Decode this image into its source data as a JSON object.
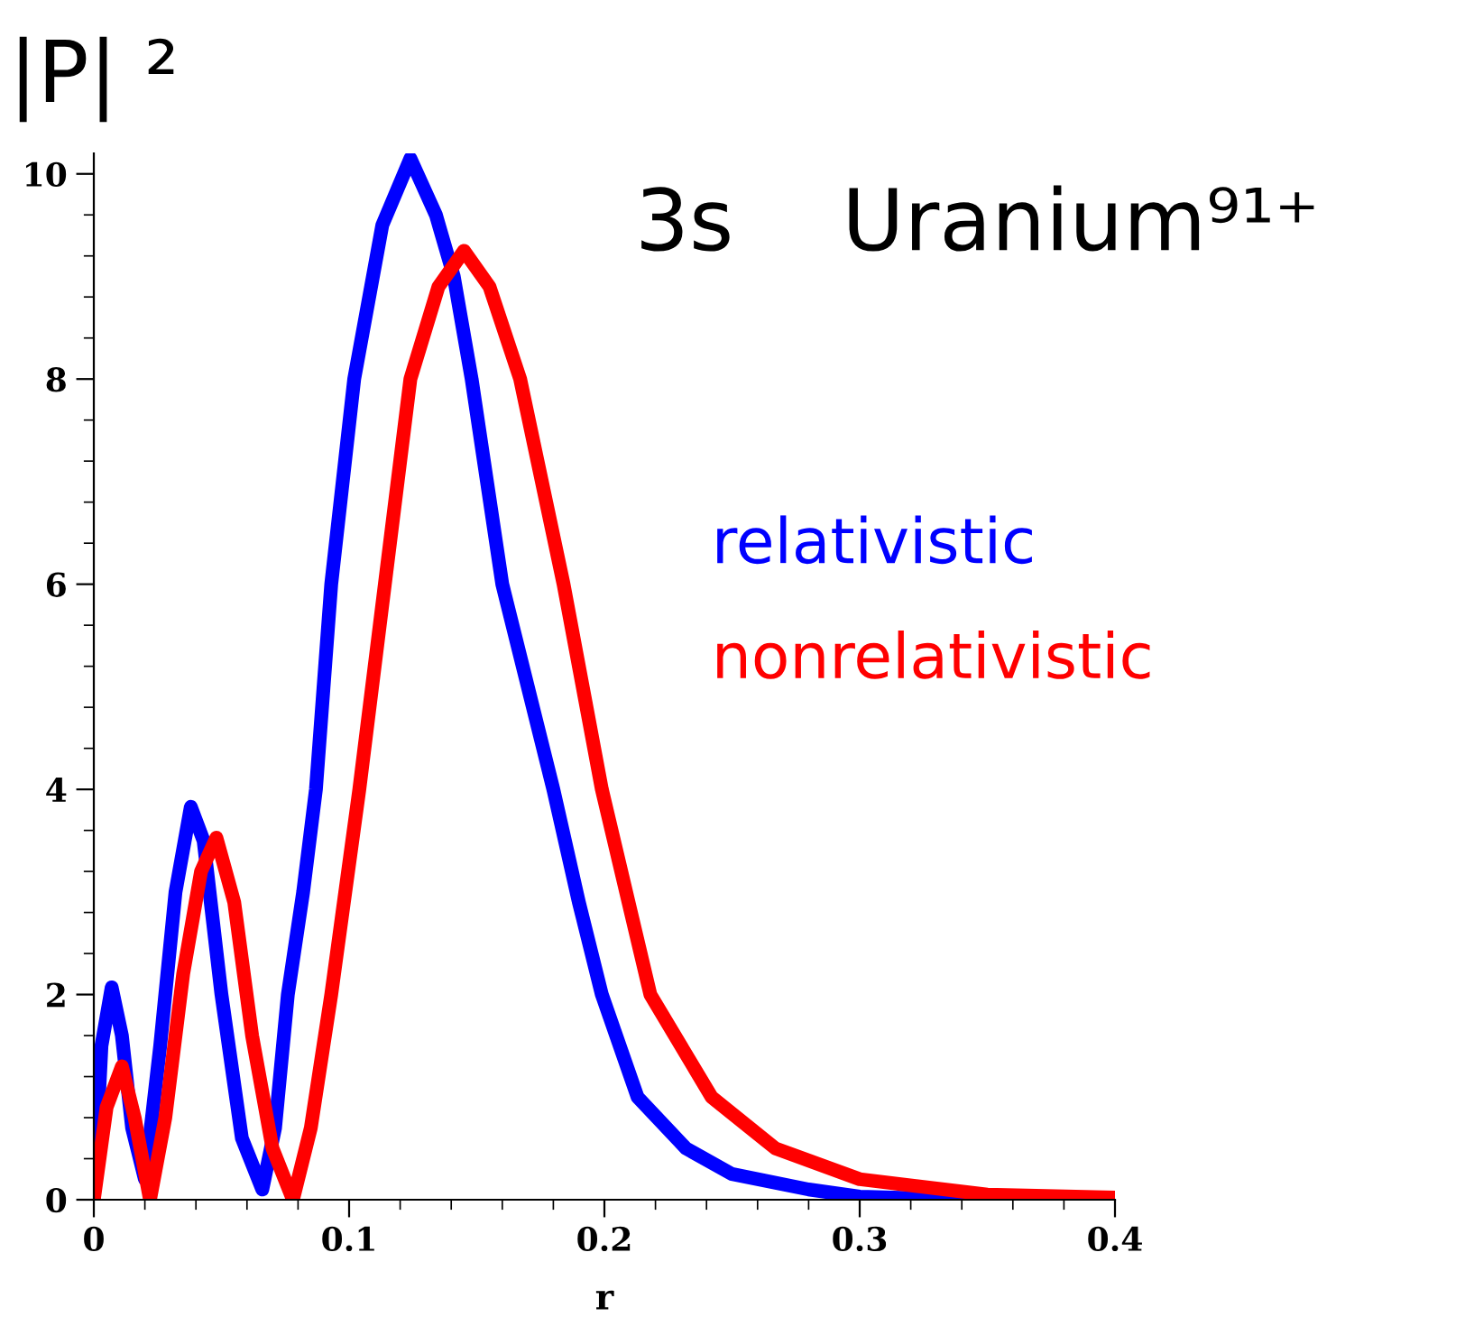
{
  "chart_data": {
    "type": "line",
    "title": "3s    Uranium⁹¹⁺",
    "xlabel": "r",
    "ylabel": "|P| ²",
    "xlim": [
      0,
      0.4
    ],
    "ylim": [
      0,
      10.2
    ],
    "xticks": [
      0,
      {
        "value": 0.02,
        "label": null
      },
      {
        "value": 0.04,
        "label": null
      },
      {
        "value": 0.06,
        "label": null
      },
      {
        "value": 0.08,
        "label": null
      },
      0.1,
      {
        "value": 0.12,
        "label": null
      },
      {
        "value": 0.14,
        "label": null
      },
      {
        "value": 0.16,
        "label": null
      },
      {
        "value": 0.18,
        "label": null
      },
      0.2,
      {
        "value": 0.22,
        "label": null
      },
      {
        "value": 0.24,
        "label": null
      },
      {
        "value": 0.26,
        "label": null
      },
      {
        "value": 0.28,
        "label": null
      },
      0.3,
      {
        "value": 0.32,
        "label": null
      },
      {
        "value": 0.34,
        "label": null
      },
      {
        "value": 0.36,
        "label": null
      },
      {
        "value": 0.38,
        "label": null
      },
      0.4
    ],
    "yticks": [
      0,
      {
        "value": 0.4,
        "label": null
      },
      {
        "value": 0.8,
        "label": null
      },
      {
        "value": 1.2,
        "label": null
      },
      {
        "value": 1.6,
        "label": null
      },
      2,
      {
        "value": 2.4,
        "label": null
      },
      {
        "value": 2.8,
        "label": null
      },
      {
        "value": 3.2,
        "label": null
      },
      {
        "value": 3.6,
        "label": null
      },
      4,
      {
        "value": 4.4,
        "label": null
      },
      {
        "value": 4.8,
        "label": null
      },
      {
        "value": 5.2,
        "label": null
      },
      {
        "value": 5.6,
        "label": null
      },
      6,
      {
        "value": 6.4,
        "label": null
      },
      {
        "value": 6.8,
        "label": null
      },
      {
        "value": 7.2,
        "label": null
      },
      {
        "value": 7.6,
        "label": null
      },
      8,
      {
        "value": 8.4,
        "label": null
      },
      {
        "value": 8.8,
        "label": null
      },
      {
        "value": 9.2,
        "label": null
      },
      {
        "value": 9.6,
        "label": null
      },
      10
    ],
    "grid": false,
    "legend": false,
    "marker": "none",
    "line_style": "solid",
    "series": [
      {
        "name": "relativistic",
        "color": "#0000ff",
        "x": [
          0,
          0.003,
          0.007,
          0.011,
          0.015,
          0.02,
          0.026,
          0.032,
          0.038,
          0.043,
          0.05,
          0.058,
          0.066,
          0.071,
          0.076,
          0.082,
          0.087,
          0.093,
          0.102,
          0.113,
          0.124,
          0.134,
          0.141,
          0.148,
          0.16,
          0.17,
          0.18,
          0.19,
          0.199,
          0.213,
          0.232,
          0.25,
          0.28,
          0.3,
          0.33,
          0.4
        ],
        "values": [
          0,
          1.5,
          2.07,
          1.6,
          0.7,
          0.2,
          1.5,
          3.0,
          3.83,
          3.5,
          2.0,
          0.6,
          0.1,
          0.7,
          2.0,
          3.0,
          4.0,
          6.0,
          8.0,
          9.5,
          10.15,
          9.6,
          9.0,
          8.0,
          6.0,
          5.0,
          4.0,
          2.9,
          2.0,
          1.0,
          0.5,
          0.25,
          0.1,
          0.03,
          0.01,
          0.0
        ]
      },
      {
        "name": "nonrelativistic",
        "color": "#ff0000",
        "x": [
          0,
          0.005,
          0.011,
          0.016,
          0.022,
          0.028,
          0.035,
          0.042,
          0.048,
          0.055,
          0.062,
          0.07,
          0.078,
          0.085,
          0.093,
          0.104,
          0.114,
          0.124,
          0.135,
          0.145,
          0.155,
          0.167,
          0.184,
          0.199,
          0.218,
          0.242,
          0.267,
          0.3,
          0.35,
          0.4
        ],
        "values": [
          0,
          0.9,
          1.3,
          0.8,
          0,
          0.8,
          2.2,
          3.2,
          3.53,
          2.9,
          1.6,
          0.5,
          0,
          0.7,
          2.0,
          4.0,
          6.0,
          8.0,
          8.9,
          9.25,
          8.9,
          8.0,
          6.0,
          4.0,
          2.0,
          1.0,
          0.5,
          0.2,
          0.05,
          0.02
        ]
      }
    ]
  }
}
